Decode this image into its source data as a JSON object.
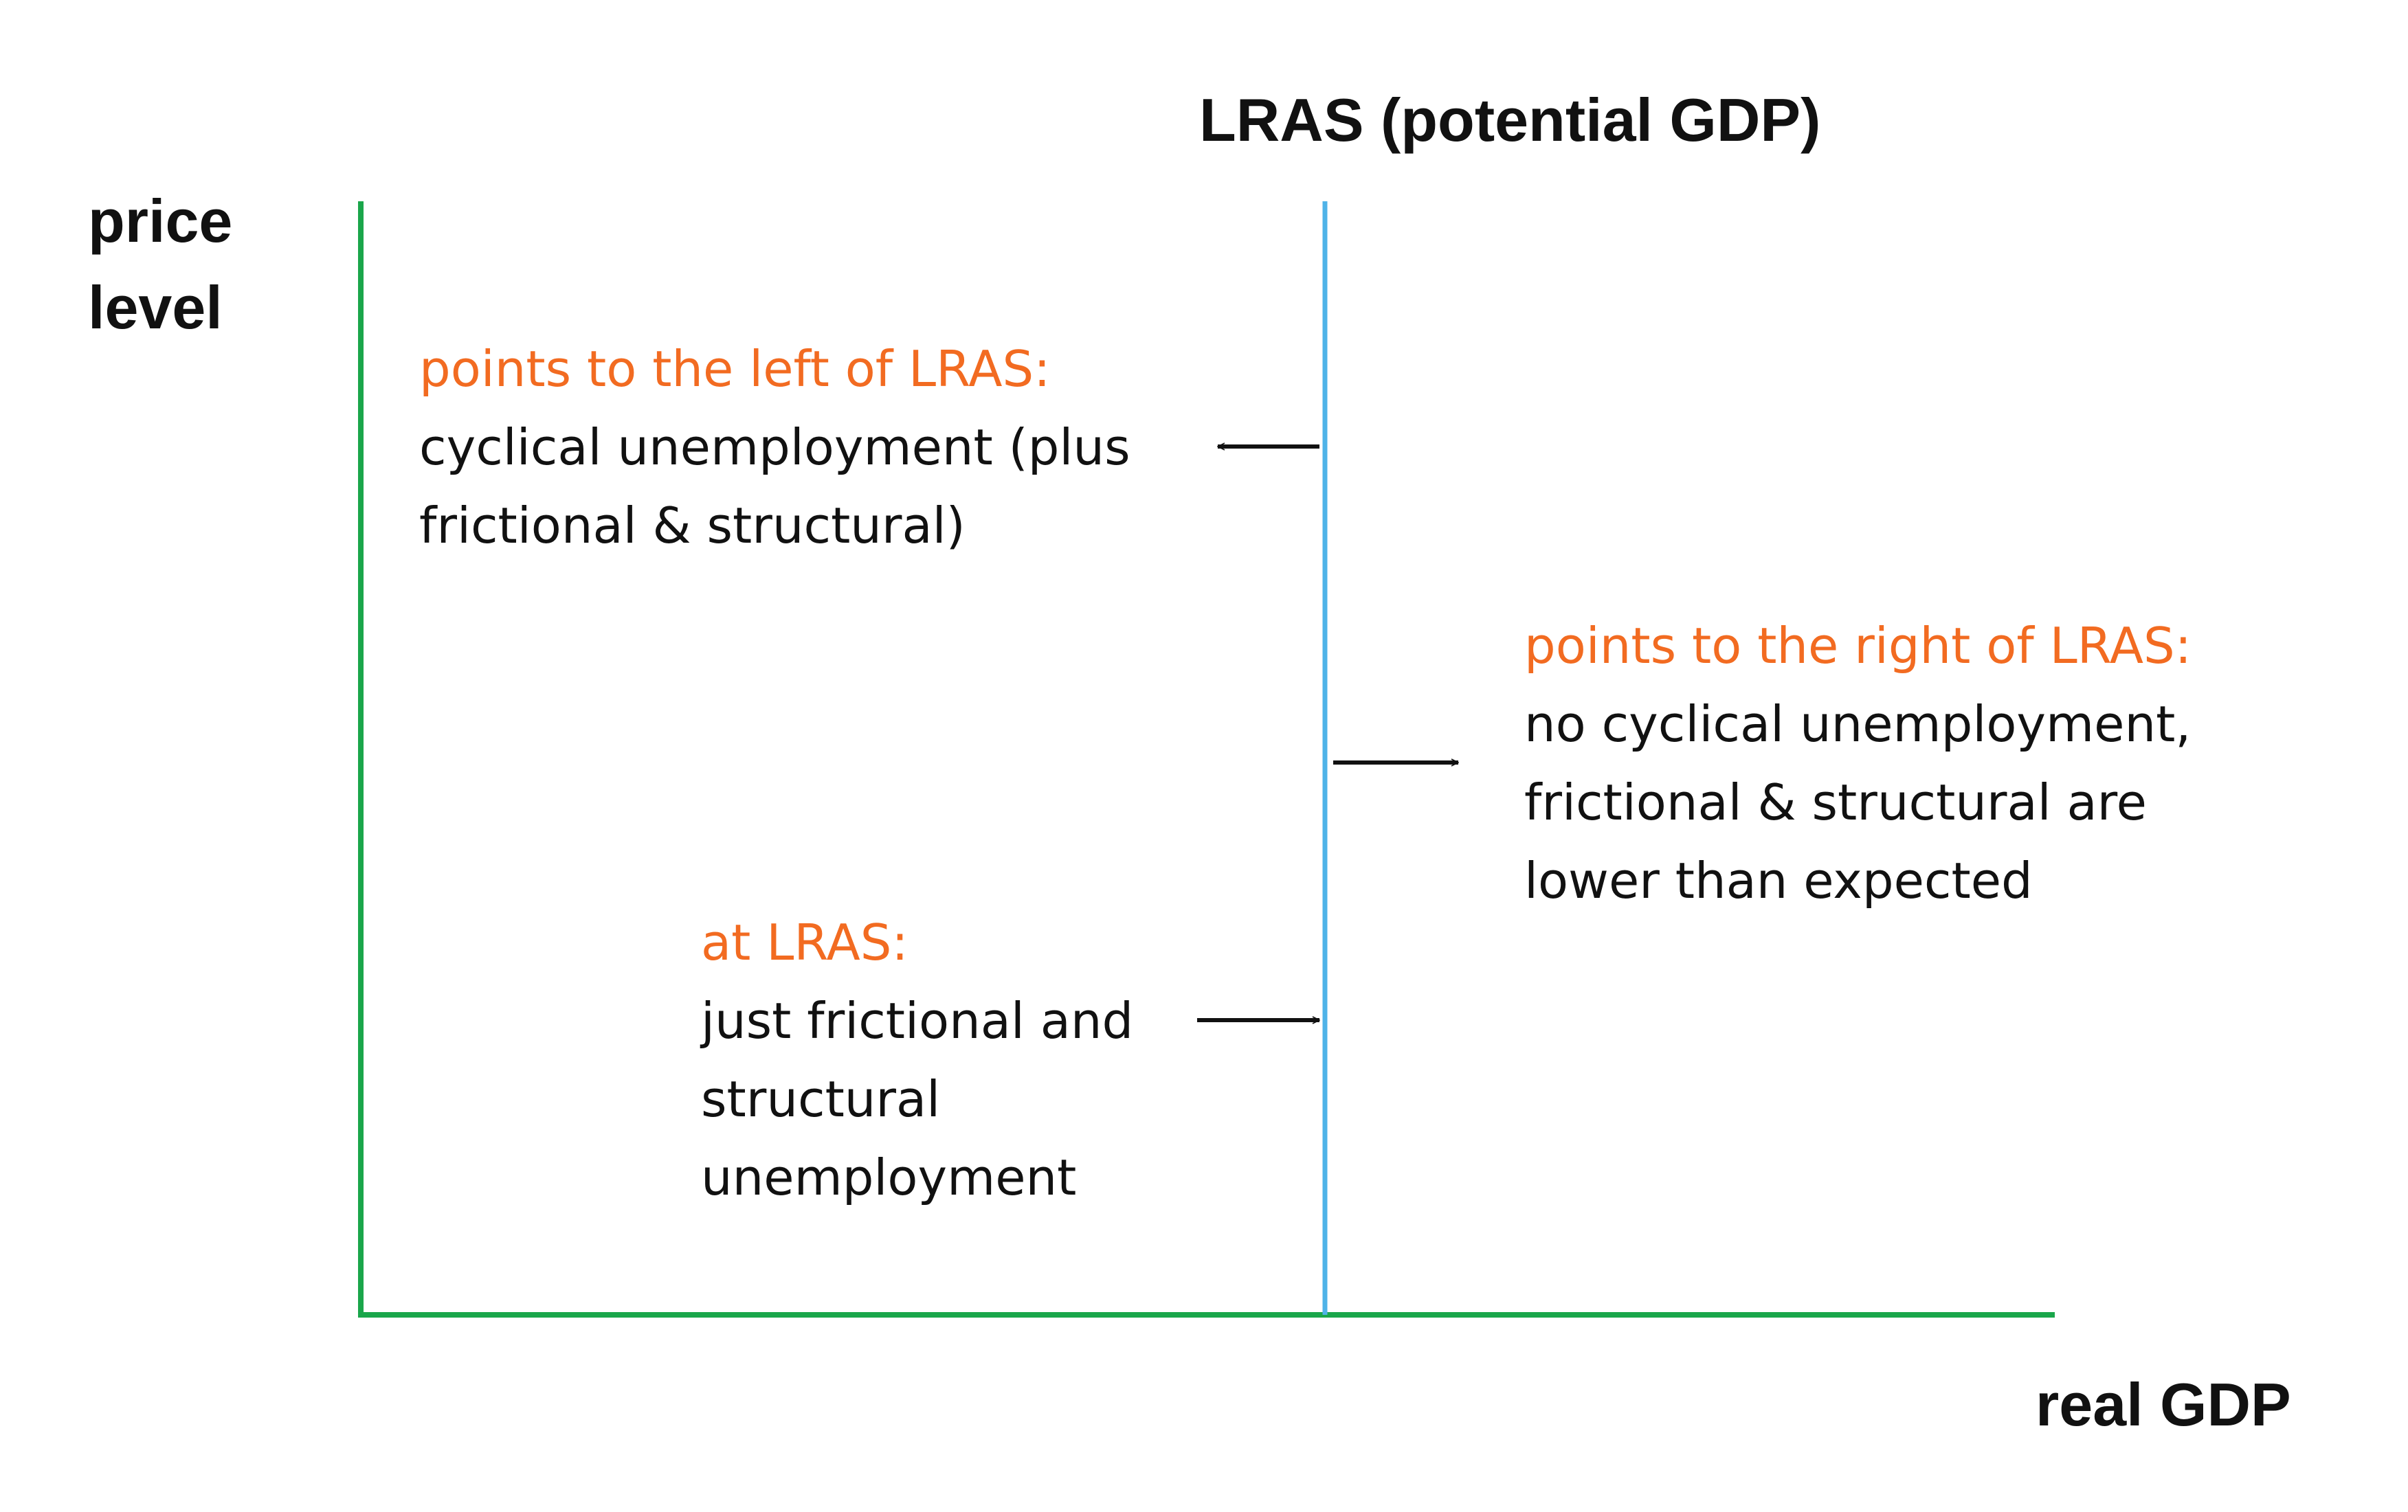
{
  "diagram": {
    "lras_title": "LRAS (potential GDP)",
    "y_axis_label": [
      "price",
      "level"
    ],
    "x_axis_label": "real GDP",
    "left_note": {
      "heading": "points to the left of LRAS:",
      "lines": [
        "cyclical unemployment (plus",
        "frictional & structural)"
      ]
    },
    "right_note": {
      "heading": "points to the right of LRAS:",
      "lines": [
        "no cyclical unemployment,",
        "frictional & structural are",
        "lower than expected"
      ]
    },
    "at_note": {
      "heading": "at LRAS:",
      "lines": [
        "just frictional and",
        "structural",
        "unemployment"
      ]
    }
  },
  "colors": {
    "axes": "#1aa64b",
    "lras_line": "#4fb3e8",
    "heading_text": "#f26b21",
    "body_text": "#111111",
    "arrows": "#111111"
  }
}
